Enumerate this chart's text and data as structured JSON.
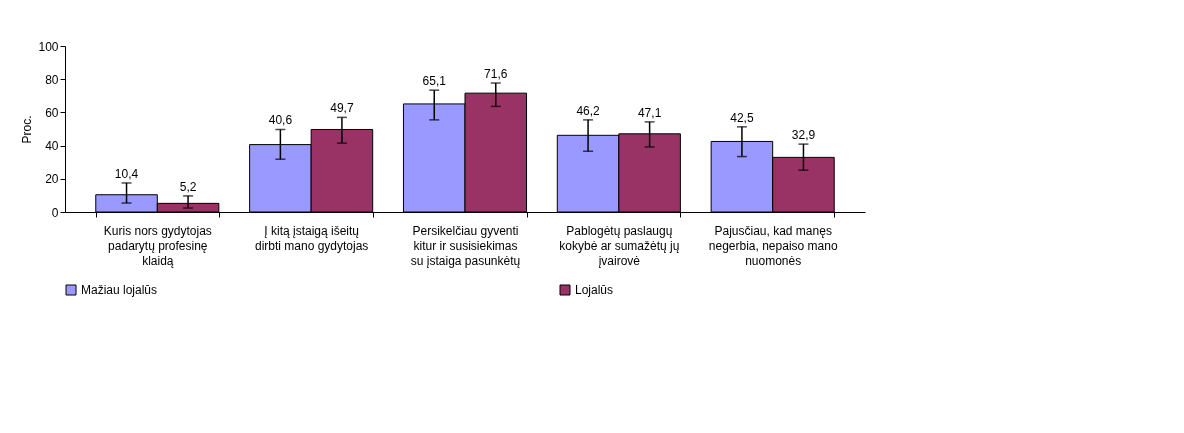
{
  "chart_data": {
    "type": "bar",
    "ylabel": "Proc.",
    "categories": [
      "Kuris nors gydytojas padarytų profesinę klaidą",
      "Į kitą įstaigą išeitų dirbti mano gydytojas",
      "Persikelčiau gyventi kitur ir susisiekimas su įstaiga pasunkėtų",
      "Pablogėtų paslaugų kokybė ar sumažėtų jų įvairovė",
      "Pajusčiau, kad manęs negerbia, nepaiso mano nuomonės"
    ],
    "series": [
      {
        "name": "Mažiau lojalūs",
        "color": "#9999ff",
        "values": [
          10.4,
          40.6,
          65.1,
          46.2,
          42.5
        ],
        "value_labels": [
          "10,4",
          "40,6",
          "65,1",
          "46,2",
          "42,5"
        ],
        "errors": [
          [
            5.4,
            17.5
          ],
          [
            31.8,
            49.7
          ],
          [
            55.5,
            73.4
          ],
          [
            36.6,
            55.5
          ],
          [
            33.4,
            51.3
          ]
        ]
      },
      {
        "name": "Lojalūs",
        "color": "#993366",
        "values": [
          5.2,
          49.7,
          71.6,
          47.1,
          32.9
        ],
        "value_labels": [
          "5,2",
          "49,7",
          "71,6",
          "47,1",
          "32,9"
        ],
        "errors": [
          [
            2.4,
            9.7
          ],
          [
            41.5,
            57.0
          ],
          [
            63.6,
            77.7
          ],
          [
            39.2,
            54.3
          ],
          [
            25.2,
            40.9
          ]
        ]
      }
    ],
    "ylim": [
      0,
      100
    ],
    "yticks": [
      0,
      20,
      40,
      60,
      80,
      100
    ],
    "grid": false,
    "legend": "bottom"
  }
}
